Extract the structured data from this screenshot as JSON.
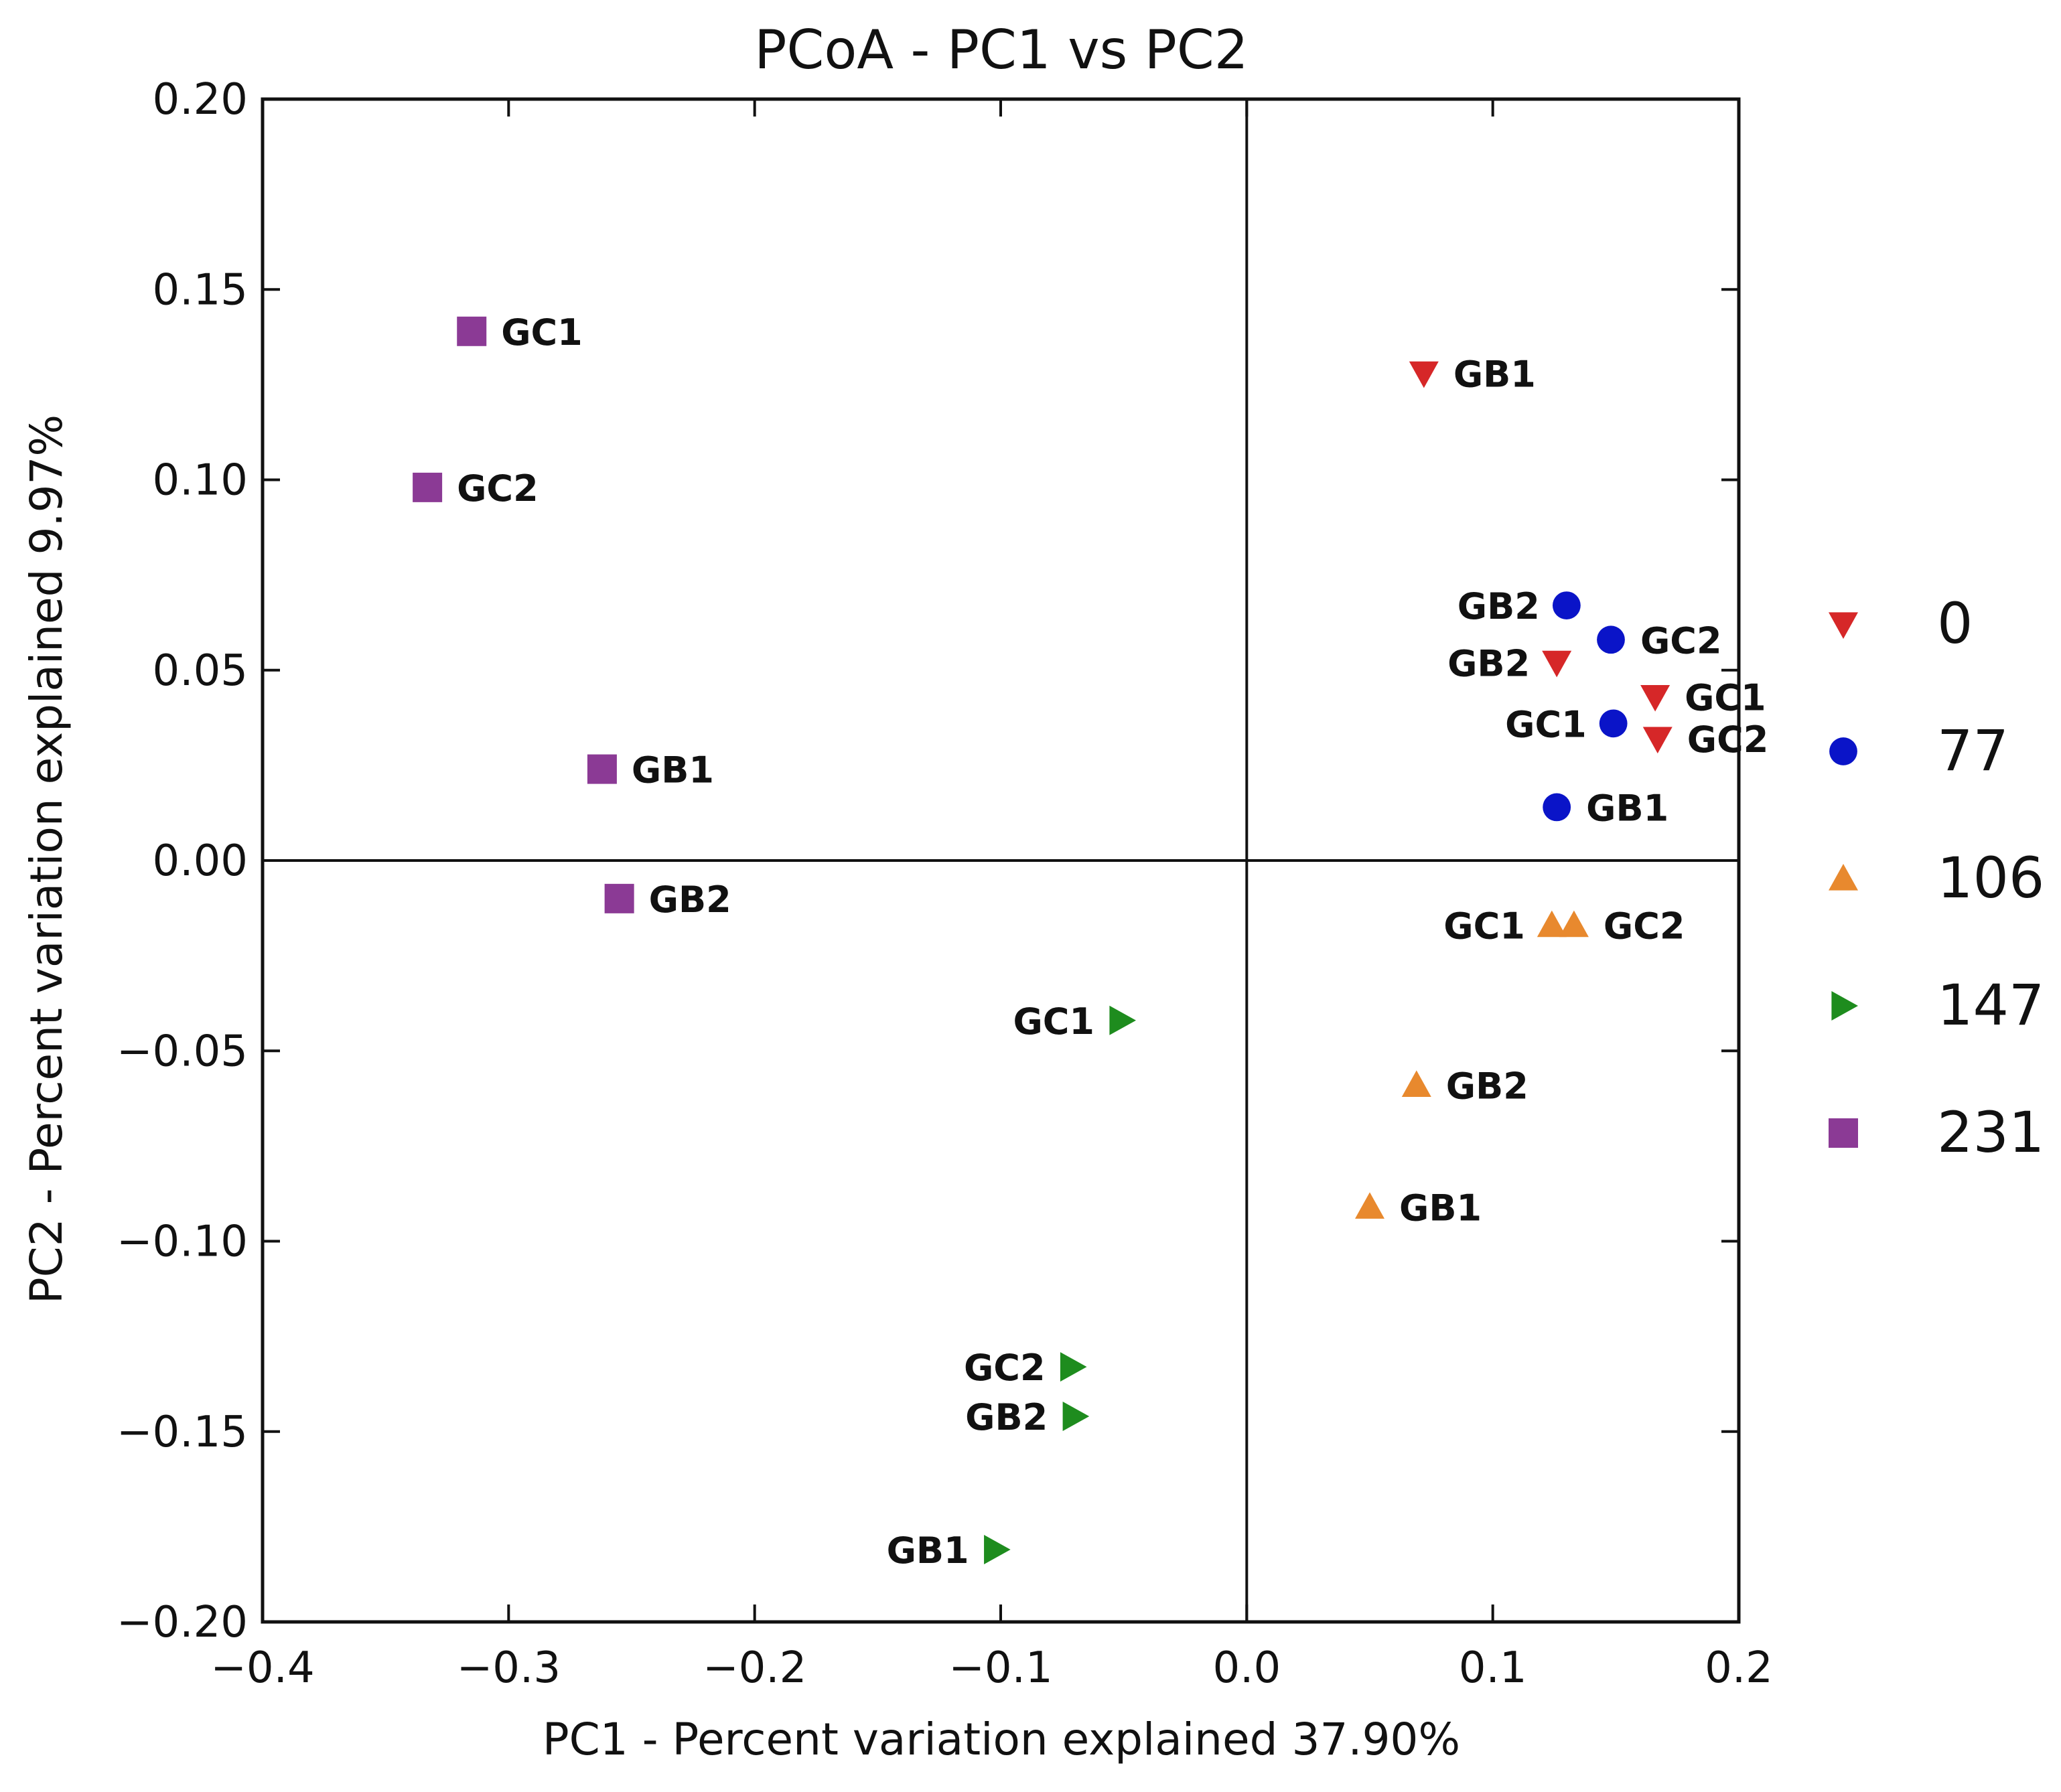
{
  "chart_data": {
    "type": "scatter",
    "title": "PCoA - PC1 vs PC2",
    "xlabel": "PC1 - Percent variation explained 37.90%",
    "ylabel": "PC2 - Percent variation explained 9.97%",
    "xlim": [
      -0.4,
      0.2
    ],
    "ylim": [
      -0.2,
      0.2
    ],
    "x_ticks": [
      -0.4,
      -0.3,
      -0.2,
      -0.1,
      0.0,
      0.1,
      0.2
    ],
    "x_tick_labels": [
      "−0.4",
      "−0.3",
      "−0.2",
      "−0.1",
      "0.0",
      "0.1",
      "0.2"
    ],
    "y_ticks": [
      0.2,
      0.15,
      0.1,
      0.05,
      0.0,
      -0.05,
      -0.1,
      -0.15,
      -0.2
    ],
    "y_tick_labels": [
      "0.20",
      "0.15",
      "0.10",
      "0.05",
      "0.00",
      "−0.05",
      "−0.10",
      "−0.15",
      "−0.20"
    ],
    "zero_lines": true,
    "grid": false,
    "legend_position": "right",
    "series": [
      {
        "name": "0",
        "marker": "triangle-down",
        "color": "#d62728",
        "points": [
          {
            "label": "GB1",
            "x": 0.072,
            "y": 0.128,
            "label_side": "right"
          },
          {
            "label": "GB2",
            "x": 0.126,
            "y": 0.052,
            "label_side": "left"
          },
          {
            "label": "GC1",
            "x": 0.166,
            "y": 0.043,
            "label_side": "right"
          },
          {
            "label": "GC2",
            "x": 0.167,
            "y": 0.032,
            "label_side": "right"
          }
        ]
      },
      {
        "name": "77",
        "marker": "circle",
        "color": "#0a14c8",
        "points": [
          {
            "label": "GB2",
            "x": 0.13,
            "y": 0.067,
            "label_side": "left"
          },
          {
            "label": "GC2",
            "x": 0.148,
            "y": 0.058,
            "label_side": "right"
          },
          {
            "label": "GC1",
            "x": 0.149,
            "y": 0.036,
            "label_side": "left"
          },
          {
            "label": "GB1",
            "x": 0.126,
            "y": 0.014,
            "label_side": "right"
          }
        ]
      },
      {
        "name": "106",
        "marker": "triangle-up",
        "color": "#e8892e",
        "points": [
          {
            "label": "GC1",
            "x": 0.124,
            "y": -0.017,
            "label_side": "left"
          },
          {
            "label": "GC2",
            "x": 0.133,
            "y": -0.017,
            "label_side": "right"
          },
          {
            "label": "GB2",
            "x": 0.069,
            "y": -0.059,
            "label_side": "right"
          },
          {
            "label": "GB1",
            "x": 0.05,
            "y": -0.091,
            "label_side": "right"
          }
        ]
      },
      {
        "name": "147",
        "marker": "triangle-right",
        "color": "#1e8c1e",
        "points": [
          {
            "label": "GC1",
            "x": -0.051,
            "y": -0.042,
            "label_side": "left"
          },
          {
            "label": "GC2",
            "x": -0.071,
            "y": -0.133,
            "label_side": "left"
          },
          {
            "label": "GB2",
            "x": -0.07,
            "y": -0.146,
            "label_side": "left"
          },
          {
            "label": "GB1",
            "x": -0.102,
            "y": -0.181,
            "label_side": "left"
          }
        ]
      },
      {
        "name": "231",
        "marker": "square",
        "color": "#8b3a95",
        "points": [
          {
            "label": "GC1",
            "x": -0.315,
            "y": 0.139,
            "label_side": "right"
          },
          {
            "label": "GC2",
            "x": -0.333,
            "y": 0.098,
            "label_side": "right"
          },
          {
            "label": "GB1",
            "x": -0.262,
            "y": 0.024,
            "label_side": "right"
          },
          {
            "label": "GB2",
            "x": -0.255,
            "y": -0.01,
            "label_side": "right"
          }
        ]
      }
    ]
  }
}
